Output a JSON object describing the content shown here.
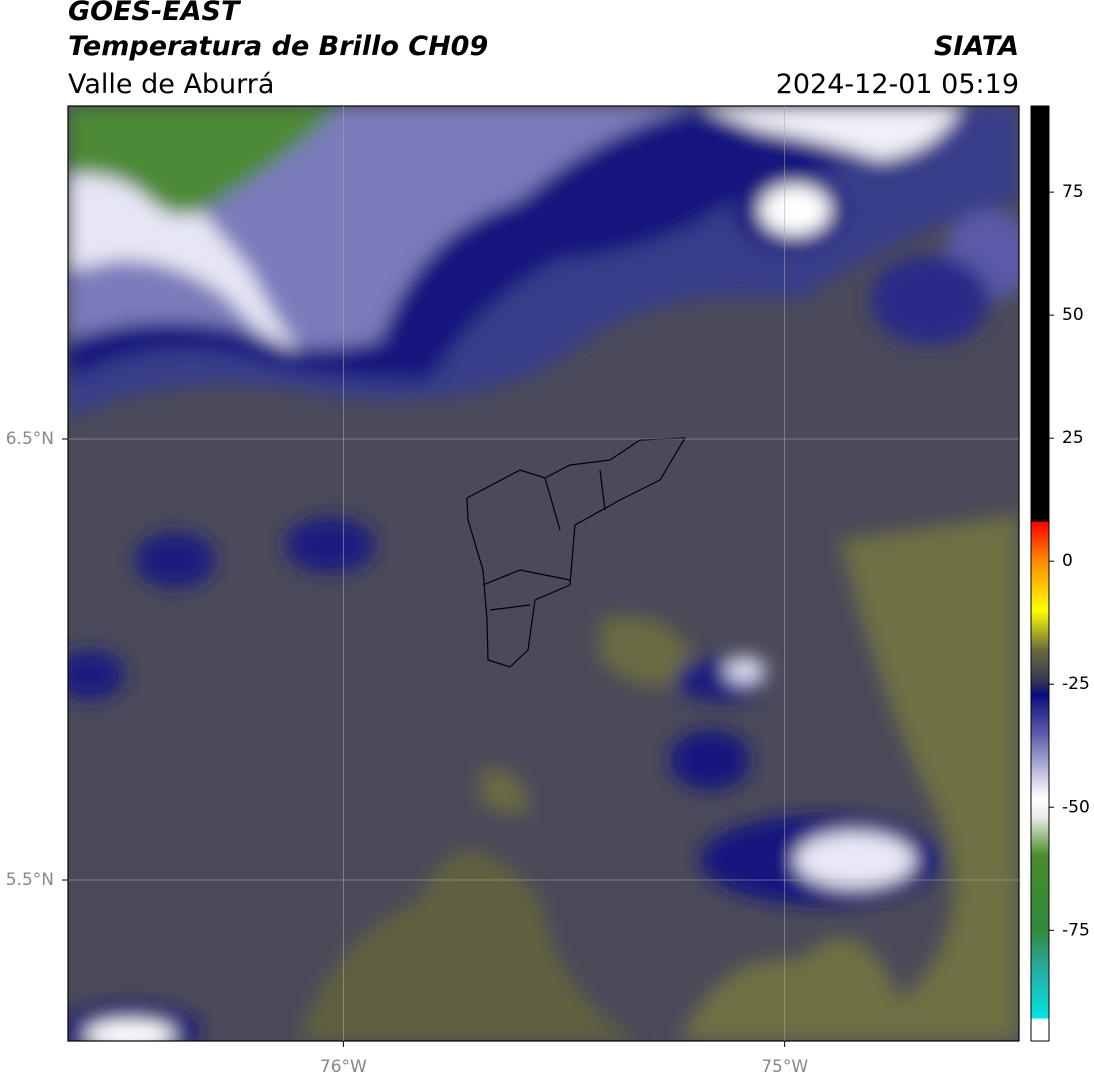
{
  "header": {
    "title": "GOES-EAST",
    "subtitle": "Temperatura de Brillo CH09",
    "region": "Valle de Aburrá",
    "source": "SIATA",
    "datetime": "2024-12-01 05:19"
  },
  "map": {
    "xlim": [
      -76.624,
      -74.469
    ],
    "ylim": [
      5.135,
      7.255
    ],
    "xticks": [
      {
        "value": -76,
        "label": "76°W"
      },
      {
        "value": -75,
        "label": "75°W"
      }
    ],
    "yticks": [
      {
        "value": 6.5,
        "label": "6.5°N"
      },
      {
        "value": 5.5,
        "label": "5.5°N"
      }
    ],
    "grid": true
  },
  "colorbar": {
    "lim": [
      -97.5,
      92.5
    ],
    "ticks": [
      75,
      50,
      25,
      0,
      -25,
      -50,
      -75
    ],
    "stops": [
      {
        "value": -97.5,
        "color": "#ffffff"
      },
      {
        "value": -93,
        "color": "#ffffff"
      },
      {
        "value": -92.9,
        "color": "#00e5e0"
      },
      {
        "value": -82,
        "color": "#2aa89a"
      },
      {
        "value": -75,
        "color": "#2e8b3e"
      },
      {
        "value": -60,
        "color": "#4a8a2a"
      },
      {
        "value": -52,
        "color": "#e8ece6"
      },
      {
        "value": -48,
        "color": "#ffffff"
      },
      {
        "value": -35,
        "color": "#5c5ca8"
      },
      {
        "value": -27,
        "color": "#0a0a80"
      },
      {
        "value": -24,
        "color": "#3a3a4e"
      },
      {
        "value": -18,
        "color": "#6a6a40"
      },
      {
        "value": -10,
        "color": "#ffff00"
      },
      {
        "value": 0,
        "color": "#ff8c00"
      },
      {
        "value": 8,
        "color": "#ff0000"
      },
      {
        "value": 8.1,
        "color": "#000000"
      },
      {
        "value": 92.5,
        "color": "#000000"
      }
    ]
  }
}
